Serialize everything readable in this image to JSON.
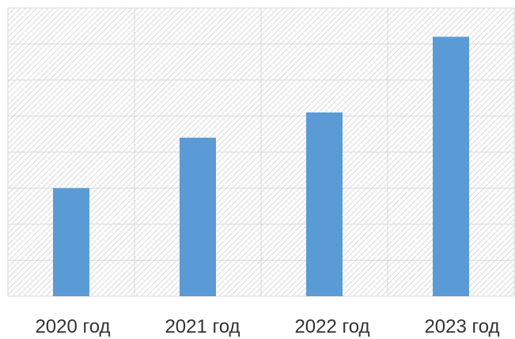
{
  "chart_data": {
    "type": "bar",
    "categories": [
      "2020 год",
      "2021 год",
      "2022 год",
      "2023 год"
    ],
    "values": [
      30,
      44,
      51,
      72
    ],
    "ylim": [
      0,
      80
    ],
    "grid": true,
    "y_gridline_count": 9,
    "bar_color": "#5b9bd5",
    "background": "hatched-gray",
    "title": "",
    "xlabel": "",
    "ylabel": ""
  }
}
